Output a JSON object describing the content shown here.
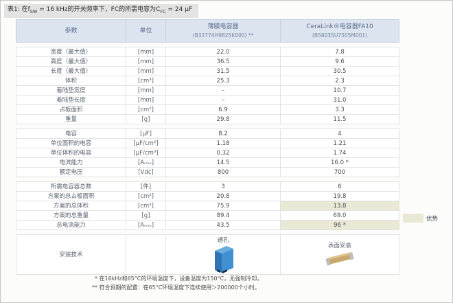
{
  "title": {
    "prefix": "表1: 在f",
    "sub1": "SW",
    "mid": " = 16 kHz的开关频率下，FC的所需电容为C",
    "sub2": "FC",
    "suffix": " = 24 μF"
  },
  "table": {
    "headers": {
      "param": "参数",
      "unit": "单位",
      "film_name": "薄膜电容器",
      "film_part": "(B32774H9825K000) **",
      "ceralink_name": "CeraLink®电容器FA10",
      "ceralink_part": "(B58035U7505M001)"
    },
    "sections": [
      {
        "rows": [
          {
            "label": "宽度（最大值）",
            "unit": "[mm]",
            "film": "22.0",
            "ceralink": "7.8"
          },
          {
            "label": "高度（最大值）",
            "unit": "[mm]",
            "film": "36.5",
            "ceralink": "9.6"
          },
          {
            "label": "长度（最大值）",
            "unit": "[mm]",
            "film": "31.5",
            "ceralink": "30.5"
          },
          {
            "label": "体积",
            "unit": "[cm³]",
            "film": "25.3",
            "ceralink": "2.3"
          },
          {
            "label": "着陆垫宽度",
            "unit": "[mm]",
            "film": "–",
            "ceralink": "10.7"
          },
          {
            "label": "着陆垫长度",
            "unit": "[mm]",
            "film": "–",
            "ceralink": "31.0"
          },
          {
            "label": "占板面积",
            "unit": "[cm²]",
            "film": "6.9",
            "ceralink": "3.3"
          },
          {
            "label": "重量",
            "unit": "[g]",
            "film": "29.8",
            "ceralink": "11.5"
          }
        ]
      },
      {
        "rows": [
          {
            "label": "电容",
            "unit": "[μF]",
            "film": "8.2",
            "ceralink": "4"
          },
          {
            "label": "单位面积的电容",
            "unit": "[μF/cm²]",
            "film": "1.18",
            "ceralink": "1.21"
          },
          {
            "label": "单位体积的电容",
            "unit": "[μF/cm³]",
            "film": "0.32",
            "ceralink": "1.74"
          },
          {
            "label": "电流能力",
            "unit": "[Aᵣₘₛ]",
            "film": "14.5",
            "ceralink": "16.0 *"
          },
          {
            "label": "额定电压",
            "unit": "[Vdc]",
            "film": "800",
            "ceralink": "700"
          }
        ]
      },
      {
        "rows": [
          {
            "label": "所需电容器总数",
            "unit": "[件]",
            "film": "3",
            "ceralink": "6"
          },
          {
            "label": "方案的总占板面积",
            "unit": "[cm²]",
            "film": "20.8",
            "ceralink": "19.8"
          },
          {
            "label": "方案的总体积",
            "unit": "[cm³]",
            "film": "75.9",
            "ceralink": "13.8",
            "highlight": true
          },
          {
            "label": "方案的总重量",
            "unit": "[g]",
            "film": "89.4",
            "ceralink": "69.0"
          },
          {
            "label": "总电流能力",
            "unit": "[Aᵣₘₛ]",
            "film": "43.5",
            "ceralink": "96 *",
            "highlight": true
          }
        ]
      }
    ],
    "mounting": {
      "label": "安装技术",
      "film_caption": "通孔",
      "ceralink_caption": "表面安装"
    }
  },
  "legend": {
    "label": "优势",
    "color": "#e9e9d6"
  },
  "footnotes": {
    "note1": "* 在16kHz和65°C的环境温度下，设备温度为150°C，无强制冷却。",
    "note2": "** 符合预期的配置：在65°C环境温度下连续使用＞200000个小时。"
  },
  "colors": {
    "header_bg": "#dce4f0",
    "highlight_bg": "#e9e9d6",
    "title_bg": "#e3e3e3"
  }
}
